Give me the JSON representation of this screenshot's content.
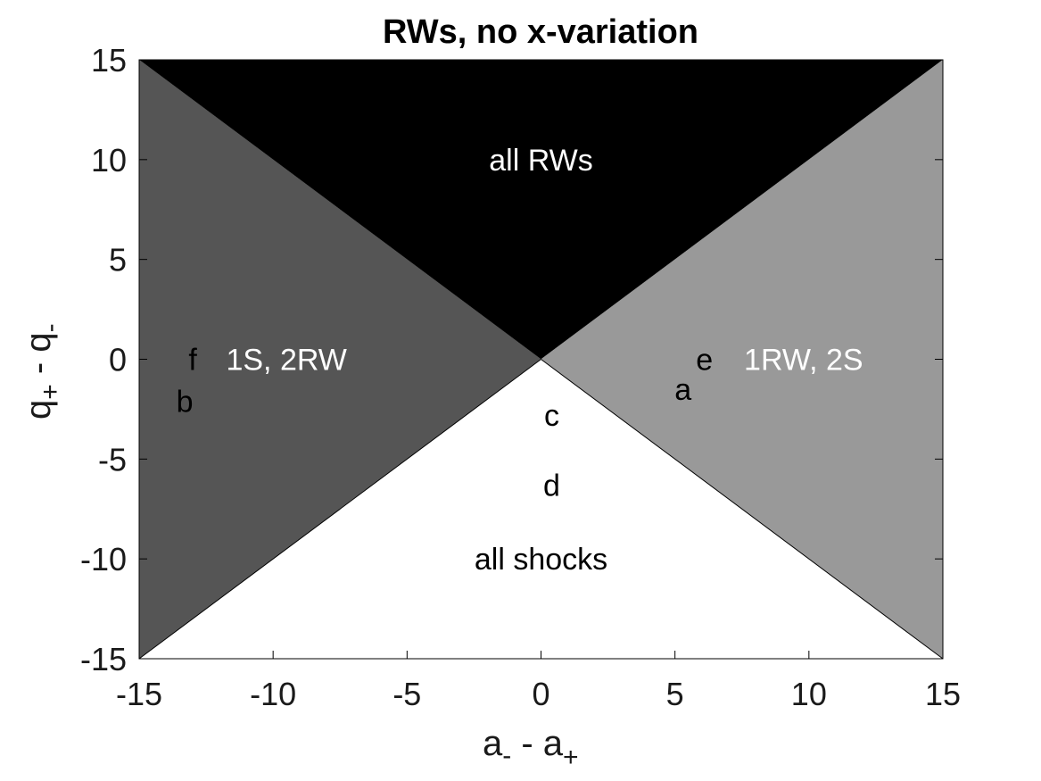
{
  "chart_data": {
    "type": "area",
    "title": "RWs, no x-variation",
    "xlabel": {
      "main1": "a",
      "sub1": "-",
      "mid": " - a",
      "sub2": "+"
    },
    "ylabel": {
      "main1": "q",
      "sub1": "+",
      "mid": " - q",
      "sub2": "-"
    },
    "xlim": [
      -15,
      15
    ],
    "ylim": [
      -15,
      15
    ],
    "xticks": [
      -15,
      -10,
      -5,
      0,
      5,
      10,
      15
    ],
    "yticks": [
      -15,
      -10,
      -5,
      0,
      5,
      10,
      15
    ],
    "xtick_labels": [
      "-15",
      "-10",
      "-5",
      "0",
      "5",
      "10",
      "15"
    ],
    "ytick_labels": [
      "-15",
      "-10",
      "-5",
      "0",
      "5",
      "10",
      "15"
    ],
    "grid": false,
    "regions": [
      {
        "label": "all RWs",
        "color": "#000000",
        "text_color": "#ffffff",
        "vertices": [
          [
            -15,
            15
          ],
          [
            15,
            15
          ],
          [
            0,
            0
          ]
        ],
        "label_at": [
          0,
          10
        ]
      },
      {
        "label": "1S, 2RW",
        "color": "#555555",
        "text_color": "#ffffff",
        "vertices": [
          [
            -15,
            15
          ],
          [
            0,
            0
          ],
          [
            -15,
            -15
          ]
        ],
        "label_at": [
          -9.5,
          0
        ]
      },
      {
        "label": "1RW, 2S",
        "color": "#999999",
        "text_color": "#ffffff",
        "vertices": [
          [
            15,
            15
          ],
          [
            0,
            0
          ],
          [
            15,
            -15
          ]
        ],
        "label_at": [
          9.8,
          0
        ]
      },
      {
        "label": "all shocks",
        "color": "#ffffff",
        "text_color": "#000000",
        "vertices": [
          [
            -15,
            -15
          ],
          [
            0,
            0
          ],
          [
            15,
            -15
          ]
        ],
        "label_at": [
          0,
          -10
        ]
      }
    ],
    "boundary_lines": [
      {
        "from": [
          0,
          0
        ],
        "to": [
          -15,
          -15
        ]
      },
      {
        "from": [
          0,
          0
        ],
        "to": [
          15,
          -15
        ]
      }
    ],
    "point_labels": [
      {
        "label": "a",
        "x": 5.3,
        "y": -1.5
      },
      {
        "label": "b",
        "x": -13.3,
        "y": -2.1
      },
      {
        "label": "c",
        "x": 0.4,
        "y": -2.8
      },
      {
        "label": "d",
        "x": 0.4,
        "y": -6.3
      },
      {
        "label": "e",
        "x": 6.1,
        "y": 0
      },
      {
        "label": "f",
        "x": -13.0,
        "y": 0
      }
    ]
  }
}
